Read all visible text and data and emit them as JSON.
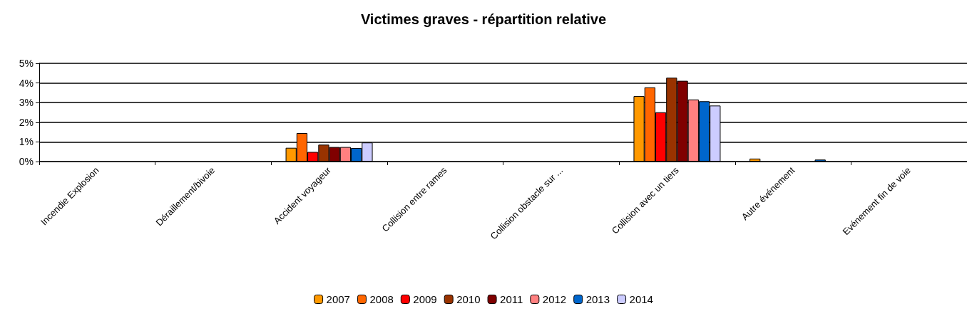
{
  "chart_data": {
    "type": "bar",
    "title": "Victimes graves - répartition relative",
    "categories": [
      "Incendie Explosion",
      "Déraillement/bivoie",
      "Accident voyageur",
      "Collision entre rames",
      "Collision obstacle sur ...",
      "Collision avec un tiers",
      "Autre événement",
      "Evénement fin de voie"
    ],
    "series": [
      {
        "name": "2007",
        "color": "#ff9900",
        "values": [
          null,
          null,
          0.7,
          null,
          null,
          3.33,
          0.15,
          null
        ]
      },
      {
        "name": "2008",
        "color": "#ff6600",
        "values": [
          null,
          null,
          1.45,
          null,
          null,
          3.78,
          null,
          null
        ]
      },
      {
        "name": "2009",
        "color": "#ff0000",
        "values": [
          null,
          null,
          0.49,
          null,
          null,
          2.51,
          null,
          null
        ]
      },
      {
        "name": "2010",
        "color": "#993300",
        "values": [
          null,
          null,
          0.86,
          null,
          null,
          4.27,
          null,
          null
        ]
      },
      {
        "name": "2011",
        "color": "#800000",
        "values": [
          null,
          null,
          0.74,
          null,
          null,
          4.11,
          null,
          null
        ]
      },
      {
        "name": "2012",
        "color": "#ff8080",
        "values": [
          null,
          null,
          0.74,
          null,
          null,
          3.16,
          null,
          null
        ]
      },
      {
        "name": "2013",
        "color": "#0066cc",
        "values": [
          null,
          null,
          0.69,
          null,
          null,
          3.07,
          0.1,
          null
        ]
      },
      {
        "name": "2014",
        "color": "#ccccff",
        "values": [
          null,
          null,
          0.97,
          null,
          null,
          2.85,
          null,
          null
        ]
      }
    ],
    "ylim": [
      0,
      5
    ],
    "yticks": [
      {
        "value": 0,
        "label": "0%"
      },
      {
        "value": 1,
        "label": "1%"
      },
      {
        "value": 2,
        "label": "2%"
      },
      {
        "value": 3,
        "label": "3%"
      },
      {
        "value": 4,
        "label": "4%"
      },
      {
        "value": 5,
        "label": "5%"
      }
    ],
    "grid": "y",
    "legend": "bottom"
  }
}
